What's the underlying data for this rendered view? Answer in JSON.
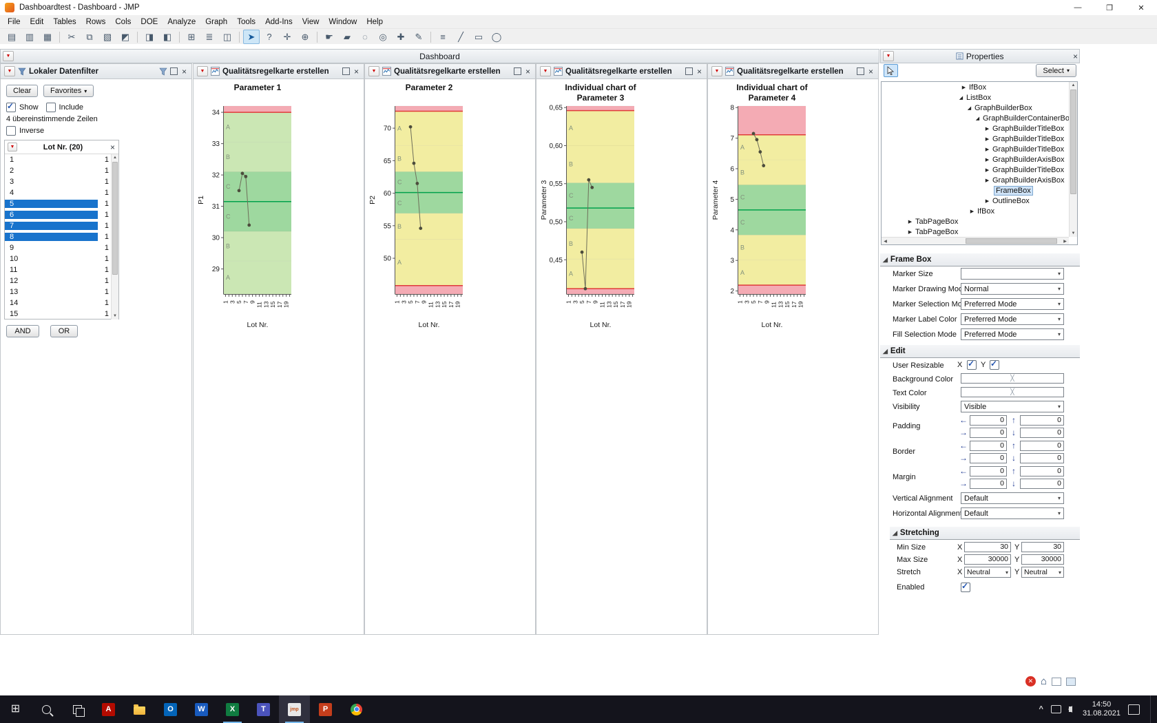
{
  "window": {
    "title": "Dashboardtest - Dashboard - JMP"
  },
  "menu": {
    "items": [
      "File",
      "Edit",
      "Tables",
      "Rows",
      "Cols",
      "DOE",
      "Analyze",
      "Graph",
      "Tools",
      "Add-Ins",
      "View",
      "Window",
      "Help"
    ]
  },
  "toolbar": {
    "groups": [
      [
        {
          "name": "new-journal-icon",
          "glyph": "▤"
        },
        {
          "name": "open-icon",
          "glyph": "▥"
        },
        {
          "name": "save-icon",
          "glyph": "▦"
        }
      ],
      [
        {
          "name": "cut-icon",
          "glyph": "✂"
        },
        {
          "name": "copy-icon",
          "glyph": "⧉"
        },
        {
          "name": "paste-icon",
          "glyph": "▧"
        },
        {
          "name": "print-icon",
          "glyph": "◩"
        }
      ],
      [
        {
          "name": "journal-icon",
          "glyph": "◨"
        },
        {
          "name": "layout-icon",
          "glyph": "◧"
        }
      ],
      [
        {
          "name": "data-table-icon",
          "glyph": "⊞"
        },
        {
          "name": "script-icon",
          "glyph": "≣"
        },
        {
          "name": "window-list-icon",
          "glyph": "◫"
        }
      ],
      [
        {
          "name": "arrow-tool-icon",
          "glyph": "➤",
          "active": true
        },
        {
          "name": "help-tool-icon",
          "glyph": "?"
        },
        {
          "name": "move-tool-icon",
          "glyph": "✛"
        },
        {
          "name": "globe-tool-icon",
          "glyph": "⊕"
        }
      ],
      [
        {
          "name": "grabber-tool-icon",
          "glyph": "☛"
        },
        {
          "name": "brush-tool-icon",
          "glyph": "▰"
        },
        {
          "name": "lasso-tool-icon",
          "glyph": "◌"
        },
        {
          "name": "magnifier-tool-icon",
          "glyph": "◎"
        },
        {
          "name": "plus-tool-icon",
          "glyph": "✚"
        },
        {
          "name": "pencil-tool-icon",
          "glyph": "✎"
        }
      ],
      [
        {
          "name": "annotate-icon",
          "glyph": "≡"
        },
        {
          "name": "line-tool-icon",
          "glyph": "╱"
        },
        {
          "name": "rect-tool-icon",
          "glyph": "▭"
        },
        {
          "name": "oval-tool-icon",
          "glyph": "◯"
        }
      ]
    ]
  },
  "dashboard": {
    "title": "Dashboard"
  },
  "filter_panel": {
    "title": "Lokaler Datenfilter",
    "clear_label": "Clear",
    "favorites_label": "Favorites",
    "show_label": "Show",
    "include_label": "Include",
    "matching_text": "4 übereinstimmende Zeilen",
    "inverse_label": "Inverse",
    "lot_header": "Lot Nr. (20)",
    "rows": [
      {
        "label": "1",
        "count": "1",
        "selected": false
      },
      {
        "label": "2",
        "count": "1",
        "selected": false
      },
      {
        "label": "3",
        "count": "1",
        "selected": false
      },
      {
        "label": "4",
        "count": "1",
        "selected": false
      },
      {
        "label": "5",
        "count": "1",
        "selected": true
      },
      {
        "label": "6",
        "count": "1",
        "selected": true
      },
      {
        "label": "7",
        "count": "1",
        "selected": true
      },
      {
        "label": "8",
        "count": "1",
        "selected": true
      },
      {
        "label": "9",
        "count": "1",
        "selected": false
      },
      {
        "label": "10",
        "count": "1",
        "selected": false
      },
      {
        "label": "11",
        "count": "1",
        "selected": false
      },
      {
        "label": "12",
        "count": "1",
        "selected": false
      },
      {
        "label": "13",
        "count": "1",
        "selected": false
      },
      {
        "label": "14",
        "count": "1",
        "selected": false
      },
      {
        "label": "15",
        "count": "1",
        "selected": false
      }
    ],
    "and_label": "AND",
    "or_label": "OR"
  },
  "chart_panels": {
    "header_title": "Qualitätsregelkarte erstellen"
  },
  "chart_data": [
    {
      "type": "line",
      "title_lines": [
        "Parameter 1"
      ],
      "ylabel": "P1",
      "xlabel": "Lot Nr.",
      "n_lots": 20,
      "x_ticks": [
        1,
        3,
        5,
        7,
        9,
        11,
        13,
        15,
        17,
        19
      ],
      "ylim": [
        28.2,
        34.2
      ],
      "yticks": [
        29,
        30,
        31,
        32,
        33,
        34
      ],
      "zones": [
        {
          "lo": 34.0,
          "hi": 34.2,
          "color": "#f4abb4",
          "label": ""
        },
        {
          "lo": 33.05,
          "hi": 34.0,
          "color": "#cbe7b4",
          "label": "A"
        },
        {
          "lo": 32.1,
          "hi": 33.05,
          "color": "#cbe7b4",
          "label": "B"
        },
        {
          "lo": 31.15,
          "hi": 32.1,
          "color": "#9ed89f",
          "label": "C"
        },
        {
          "lo": 30.2,
          "hi": 31.15,
          "color": "#9ed89f",
          "label": "C"
        },
        {
          "lo": 29.25,
          "hi": 30.2,
          "color": "#cbe7b4",
          "label": "B"
        },
        {
          "lo": 28.2,
          "hi": 29.25,
          "color": "#cbe7b4",
          "label": "A"
        }
      ],
      "center": 31.15,
      "limits": [
        34.0
      ],
      "points": {
        "x": [
          5,
          6,
          7,
          8
        ],
        "y": [
          31.5,
          32.05,
          31.95,
          30.4
        ]
      }
    },
    {
      "type": "line",
      "title_lines": [
        "Parameter 2"
      ],
      "ylabel": "P2",
      "xlabel": "Lot Nr.",
      "n_lots": 20,
      "x_ticks": [
        1,
        3,
        5,
        7,
        9,
        11,
        13,
        15,
        17,
        19
      ],
      "ylim": [
        44.5,
        73.4
      ],
      "yticks": [
        50,
        55,
        60,
        65,
        70
      ],
      "zones": [
        {
          "lo": 72.6,
          "hi": 73.4,
          "color": "#f4abb4",
          "label": ""
        },
        {
          "lo": 67.3,
          "hi": 72.6,
          "color": "#f2eda1",
          "label": "A"
        },
        {
          "lo": 63.3,
          "hi": 67.3,
          "color": "#f2eda1",
          "label": "B"
        },
        {
          "lo": 60.1,
          "hi": 63.3,
          "color": "#9ed89f",
          "label": "C"
        },
        {
          "lo": 56.9,
          "hi": 60.1,
          "color": "#9ed89f",
          "label": "C"
        },
        {
          "lo": 52.9,
          "hi": 56.9,
          "color": "#f2eda1",
          "label": "B"
        },
        {
          "lo": 45.8,
          "hi": 52.9,
          "color": "#f2eda1",
          "label": "A"
        },
        {
          "lo": 44.5,
          "hi": 45.8,
          "color": "#f4abb4",
          "label": ""
        }
      ],
      "center": 60.1,
      "limits": [
        72.6,
        45.8
      ],
      "points": {
        "x": [
          5,
          6,
          7,
          8
        ],
        "y": [
          70.2,
          64.6,
          61.5,
          54.6
        ]
      }
    },
    {
      "type": "line",
      "title_lines": [
        "Individual chart of",
        "Parameter 3"
      ],
      "ylabel": "Parameter 3",
      "xlabel": "Lot Nr.",
      "n_lots": 20,
      "x_ticks": [
        1,
        3,
        5,
        7,
        9,
        11,
        13,
        15,
        17,
        19
      ],
      "ylim": [
        0.405,
        0.652
      ],
      "yticks": [
        0.45,
        0.5,
        0.55,
        0.6,
        0.65
      ],
      "ytick_labels": [
        "0,45",
        "0,50",
        "0,55",
        "0,60",
        "0,65"
      ],
      "zones": [
        {
          "lo": 0.646,
          "hi": 0.652,
          "color": "#f4abb4",
          "label": ""
        },
        {
          "lo": 0.6,
          "hi": 0.646,
          "color": "#f2eda1",
          "label": "A"
        },
        {
          "lo": 0.551,
          "hi": 0.6,
          "color": "#f2eda1",
          "label": "B"
        },
        {
          "lo": 0.518,
          "hi": 0.551,
          "color": "#9ed89f",
          "label": "C"
        },
        {
          "lo": 0.491,
          "hi": 0.518,
          "color": "#9ed89f",
          "label": "C"
        },
        {
          "lo": 0.451,
          "hi": 0.491,
          "color": "#f2eda1",
          "label": "B"
        },
        {
          "lo": 0.412,
          "hi": 0.451,
          "color": "#f2eda1",
          "label": "A"
        },
        {
          "lo": 0.405,
          "hi": 0.412,
          "color": "#f4abb4",
          "label": ""
        }
      ],
      "center": 0.518,
      "limits": [
        0.646,
        0.412
      ],
      "points": {
        "x": [
          5,
          6,
          7,
          8
        ],
        "y": [
          0.46,
          0.412,
          0.555,
          0.545
        ]
      }
    },
    {
      "type": "line",
      "title_lines": [
        "Individual chart of",
        "Parameter 4"
      ],
      "ylabel": "Parameter 4",
      "xlabel": "Lot Nr.",
      "n_lots": 20,
      "x_ticks": [
        1,
        3,
        5,
        7,
        9,
        11,
        13,
        15,
        17,
        19
      ],
      "ylim": [
        1.9,
        8.05
      ],
      "yticks": [
        2,
        3,
        4,
        5,
        6,
        7,
        8
      ],
      "zones": [
        {
          "lo": 7.11,
          "hi": 8.05,
          "color": "#f4abb4",
          "label": ""
        },
        {
          "lo": 6.29,
          "hi": 7.11,
          "color": "#f2eda1",
          "label": "A"
        },
        {
          "lo": 5.47,
          "hi": 6.29,
          "color": "#f2eda1",
          "label": "B"
        },
        {
          "lo": 4.65,
          "hi": 5.47,
          "color": "#9ed89f",
          "label": "C"
        },
        {
          "lo": 3.83,
          "hi": 4.65,
          "color": "#9ed89f",
          "label": "C"
        },
        {
          "lo": 3.01,
          "hi": 3.83,
          "color": "#f2eda1",
          "label": "B"
        },
        {
          "lo": 2.19,
          "hi": 3.01,
          "color": "#f2eda1",
          "label": "A"
        },
        {
          "lo": 1.9,
          "hi": 2.19,
          "color": "#f4abb4",
          "label": ""
        }
      ],
      "center": 4.65,
      "limits": [
        7.11,
        2.19
      ],
      "points": {
        "x": [
          5,
          6,
          7,
          8
        ],
        "y": [
          7.15,
          6.95,
          6.55,
          6.1
        ]
      }
    }
  ],
  "chart_colors": {
    "marker": "#4c4c3c",
    "series_line": "#6e6e59",
    "center_line": "#00a14b",
    "limit_line": "#e03a3a"
  },
  "properties_panel": {
    "title": "Properties",
    "select_label": "Select",
    "tree": [
      {
        "label": "IfBox",
        "arrow": "col",
        "indent": 114
      },
      {
        "label": "ListBox",
        "arrow": "exp",
        "indent": 110
      },
      {
        "label": "GraphBuilderBox",
        "arrow": "exp",
        "indent": 122
      },
      {
        "label": "GraphBuilderContainerBox",
        "arrow": "exp",
        "indent": 134
      },
      {
        "label": "GraphBuilderTitleBox",
        "arrow": "col",
        "indent": 148
      },
      {
        "label": "GraphBuilderTitleBox",
        "arrow": "col",
        "indent": 148
      },
      {
        "label": "GraphBuilderTitleBox",
        "arrow": "col",
        "indent": 148
      },
      {
        "label": "GraphBuilderAxisBox",
        "arrow": "col",
        "indent": 148
      },
      {
        "label": "GraphBuilderTitleBox",
        "arrow": "col",
        "indent": 148
      },
      {
        "label": "GraphBuilderAxisBox",
        "arrow": "col",
        "indent": 148
      },
      {
        "label": "FrameBox",
        "arrow": "none",
        "indent": 152,
        "selected": true
      },
      {
        "label": "OutlineBox",
        "arrow": "col",
        "indent": 148
      },
      {
        "label": "IfBox",
        "arrow": "col",
        "indent": 126
      },
      {
        "label": "TabPageBox",
        "arrow": "col",
        "indent": 36
      },
      {
        "label": "TabPageBox",
        "arrow": "col",
        "indent": 36
      }
    ],
    "frame_box_title": "Frame Box",
    "frame_rows": [
      {
        "label": "Marker Size",
        "value": ""
      },
      {
        "label": "Marker Drawing Mode",
        "value": "Normal"
      },
      {
        "label": "Marker Selection Mode",
        "value": "Preferred Mode"
      },
      {
        "label": "Marker Label Color",
        "value": "Preferred Mode"
      },
      {
        "label": "Fill Selection Mode",
        "value": "Preferred Mode"
      }
    ],
    "edit_title": "Edit",
    "user_resizable_label": "User Resizable",
    "x_label": "X",
    "y_label": "Y",
    "background_color_label": "Background Color",
    "text_color_label": "Text Color",
    "visibility_label": "Visibility",
    "visibility_value": "Visible",
    "padding_label": "Padding",
    "border_label": "Border",
    "margin_label": "Margin",
    "spacing": {
      "padding": [
        "0",
        "0",
        "0",
        "0"
      ],
      "border": [
        "0",
        "0",
        "0",
        "0"
      ],
      "margin": [
        "0",
        "0",
        "0",
        "0"
      ]
    },
    "vertical_alignment_label": "Vertical Alignment",
    "vertical_alignment_value": "Default",
    "horizontal_alignment_label": "Horizontal Alignment",
    "horizontal_alignment_value": "Default",
    "stretching_title": "Stretching",
    "min_size_label": "Min Size",
    "min_x": "30",
    "min_y": "30",
    "max_size_label": "Max Size",
    "max_x": "30000",
    "max_y": "30000",
    "stretch_label": "Stretch",
    "stretch_x": "Neutral",
    "stretch_y": "Neutral",
    "enabled_label": "Enabled"
  },
  "taskbar": {
    "apps": [
      {
        "name": "start"
      },
      {
        "name": "search"
      },
      {
        "name": "task-view"
      },
      {
        "name": "acrobat",
        "label": "A",
        "bg": "#b30b00"
      },
      {
        "name": "explorer"
      },
      {
        "name": "outlook",
        "label": "O",
        "bg": "#0364b8"
      },
      {
        "name": "word",
        "label": "W",
        "bg": "#185abd"
      },
      {
        "name": "excel",
        "label": "X",
        "bg": "#107c41",
        "open": true
      },
      {
        "name": "teams",
        "label": "T",
        "bg": "#4b53bc"
      },
      {
        "name": "jmp",
        "label": "jmp",
        "bg": "#e8e8e8",
        "fg": "#c2531c",
        "active": true,
        "open": true
      },
      {
        "name": "powerpoint",
        "label": "P",
        "bg": "#c43e1c"
      },
      {
        "name": "chrome"
      }
    ],
    "time": "14:50",
    "date": "31.08.2021"
  }
}
